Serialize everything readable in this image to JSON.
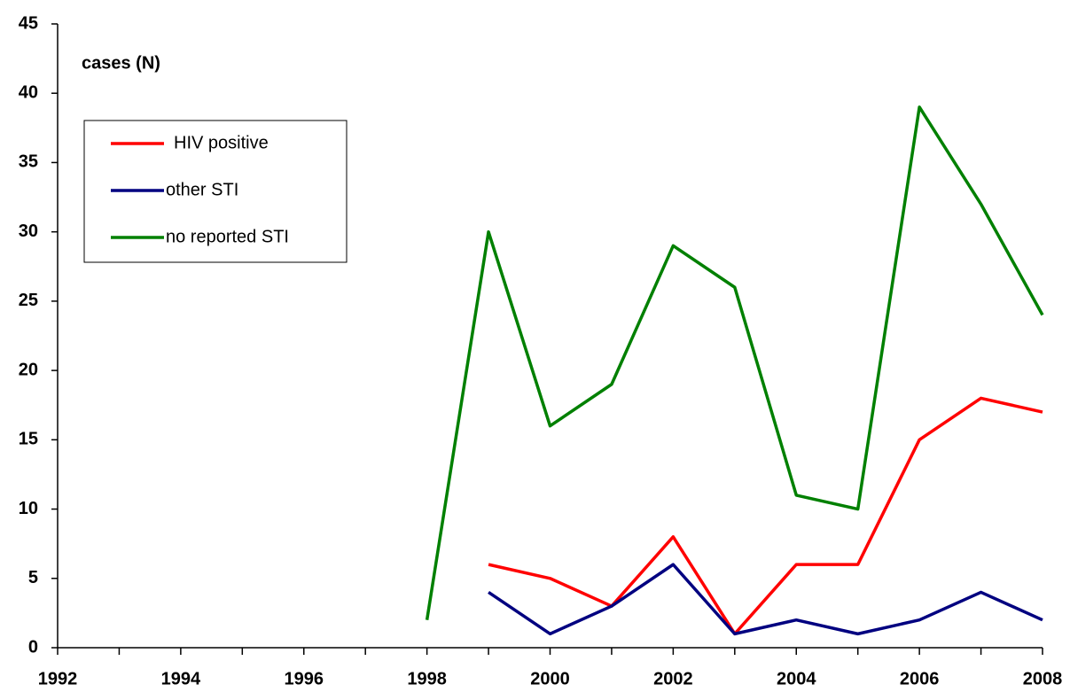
{
  "chart_data": {
    "type": "line",
    "y_label": "cases (N)",
    "x": [
      1998,
      1999,
      2000,
      2001,
      2002,
      2003,
      2004,
      2005,
      2006,
      2007,
      2008
    ],
    "series": [
      {
        "name": "HIV positive",
        "color": "#ff0000",
        "values": [
          null,
          6,
          5,
          3,
          8,
          1,
          6,
          6,
          15,
          18,
          17
        ]
      },
      {
        "name": "other STI",
        "color": "#000080",
        "values": [
          null,
          4,
          1,
          3,
          6,
          1,
          2,
          1,
          2,
          4,
          2
        ]
      },
      {
        "name": "no reported STI",
        "color": "#008000",
        "values": [
          2,
          30,
          16,
          19,
          29,
          26,
          11,
          10,
          39,
          32,
          24
        ]
      }
    ],
    "xlim": [
      1992,
      2008
    ],
    "xticks": [
      1992,
      1994,
      1996,
      1998,
      2000,
      2002,
      2004,
      2006,
      2008
    ],
    "ylim": [
      0,
      45
    ],
    "yticks": [
      0,
      5,
      10,
      15,
      20,
      25,
      30,
      35,
      40,
      45
    ],
    "grid": false,
    "legend": "upper left"
  }
}
